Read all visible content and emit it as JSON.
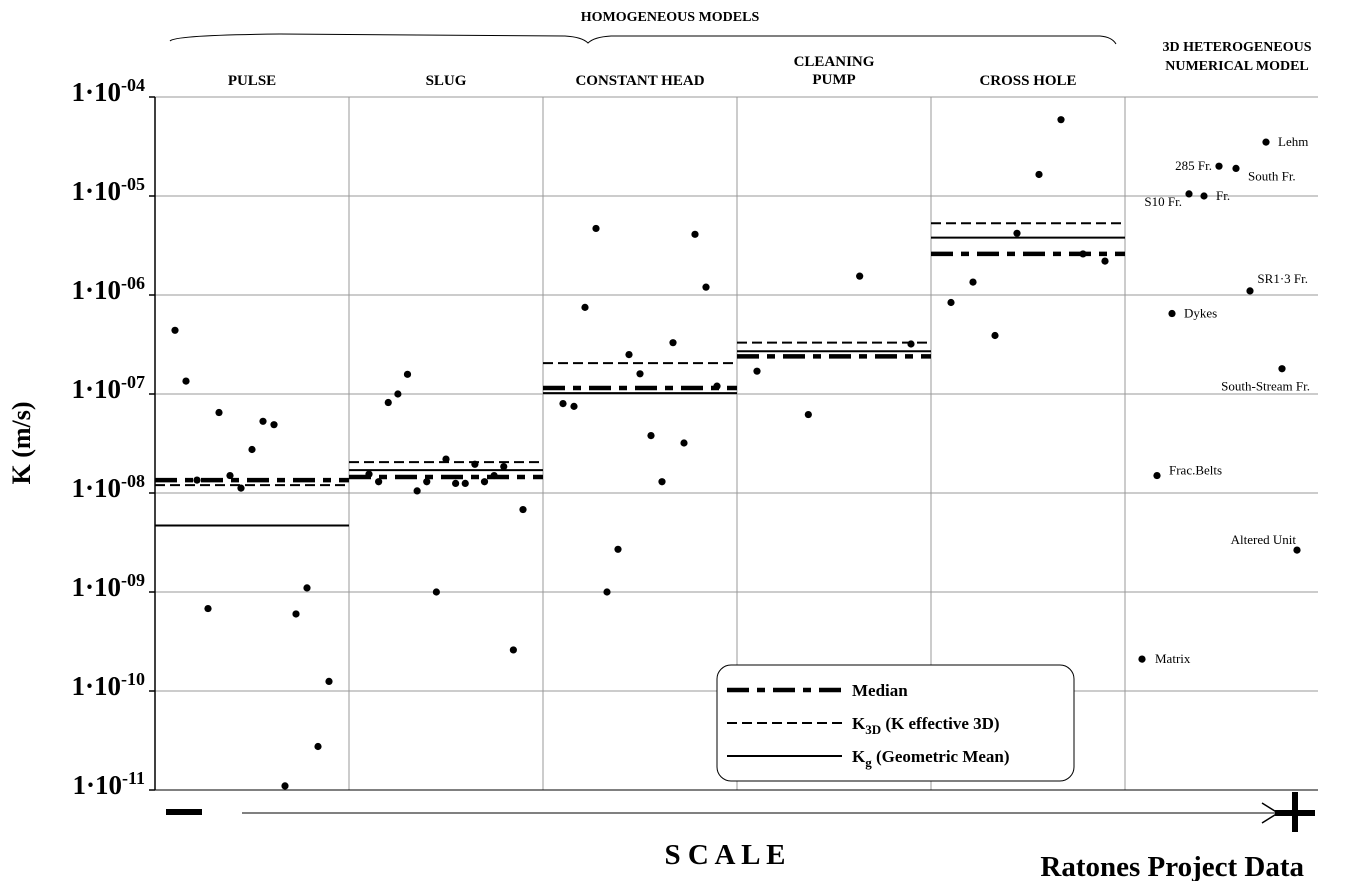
{
  "chart_data": {
    "type": "scatter",
    "y_scale": "log",
    "ylabel": "K (m/s)",
    "ylim": [
      1e-11,
      0.0001
    ],
    "y_ticks": [
      {
        "value": 0.0001,
        "label": "1·10-04"
      },
      {
        "value": 1e-05,
        "label": "1·10-05"
      },
      {
        "value": 1e-06,
        "label": "1·10-06"
      },
      {
        "value": 1e-07,
        "label": "1·10-07"
      },
      {
        "value": 1e-08,
        "label": "1·10-08"
      },
      {
        "value": 1e-09,
        "label": "1·10-09"
      },
      {
        "value": 1e-10,
        "label": "1·10-10"
      },
      {
        "value": 1e-11,
        "label": "1·10-11"
      }
    ],
    "grid": true,
    "group_headers": [
      {
        "label": "HOMOGENEOUS MODELS",
        "spans_panels": [
          0,
          4
        ]
      },
      {
        "label": "3D HETEROGENEOUS NUMERICAL MODEL",
        "spans_panels": [
          5,
          5
        ]
      }
    ],
    "panels": [
      {
        "name": "PULSE",
        "points": [
          4.4e-07,
          1.35e-07,
          1.35e-08,
          6.8e-10,
          6.5e-08,
          1.5e-08,
          1.12e-08,
          2.75e-08,
          5.3e-08,
          4.9e-08,
          1.1e-11,
          6e-10,
          1.1e-09,
          2.75e-11,
          1.25e-10
        ],
        "median": 1.35e-08,
        "k3d": 1.2e-08,
        "kg": 4.7e-09
      },
      {
        "name": "SLUG",
        "points": [
          1.55e-08,
          1.3e-08,
          8.2e-08,
          1e-07,
          1.58e-07,
          1.05e-08,
          1.3e-08,
          1e-09,
          2.2e-08,
          1.25e-08,
          1.25e-08,
          1.95e-08,
          1.3e-08,
          1.5e-08,
          1.85e-08,
          2.6e-10,
          6.8e-09
        ],
        "median": 1.45e-08,
        "k3d": 2.05e-08,
        "kg": 1.7e-08
      },
      {
        "name": "CONSTANT HEAD",
        "points": [
          8e-08,
          7.5e-08,
          7.5e-07,
          4.7e-06,
          1e-09,
          2.7e-09,
          2.5e-07,
          1.6e-07,
          3.8e-08,
          1.3e-08,
          3.3e-07,
          3.2e-08,
          4.1e-06,
          1.2e-06,
          1.2e-07
        ],
        "median": 1.15e-07,
        "k3d": 2.05e-07,
        "kg": 1.02e-07
      },
      {
        "name": "CLEANING PUMP",
        "points": [
          1.7e-07,
          6.2e-08,
          1.55e-06,
          3.2e-07
        ],
        "median": 2.4e-07,
        "k3d": 3.3e-07,
        "kg": 2.7e-07
      },
      {
        "name": "CROSS HOLE",
        "points": [
          8.4e-07,
          1.35e-06,
          3.9e-07,
          4.2e-06,
          1.65e-05,
          5.9e-05,
          2.6e-06,
          2.2e-06
        ],
        "median": 2.6e-06,
        "k3d": 5.3e-06,
        "kg": 3.8e-06
      }
    ],
    "heterogeneous_units": [
      {
        "label": "Lehm",
        "value": 3.5e-05
      },
      {
        "label": "285 Fr.",
        "value": 2e-05
      },
      {
        "label": "South Fr.",
        "value": 1.9e-05
      },
      {
        "label": "S10 Fr.",
        "value": 1.05e-05
      },
      {
        "label": "Fr.",
        "value": 1e-05
      },
      {
        "label": "SR1·3 Fr.",
        "value": 1.1e-06
      },
      {
        "label": "Dykes",
        "value": 6.5e-07
      },
      {
        "label": "South-Stream Fr.",
        "value": 1.8e-07
      },
      {
        "label": "Frac.Belts",
        "value": 1.5e-08
      },
      {
        "label": "Altered Unit",
        "value": 2.65e-09
      },
      {
        "label": "Matrix",
        "value": 2.1e-10
      }
    ],
    "legend": {
      "position": "bottom-right",
      "entries": [
        {
          "style": "dash-dot",
          "label": "Median"
        },
        {
          "style": "dashed",
          "label_main": "K",
          "label_sub": "3D",
          "label_rest": "(K effective 3D)"
        },
        {
          "style": "solid",
          "label_main": "K",
          "label_sub": "g",
          "label_rest": "(Geometric Mean)"
        }
      ]
    },
    "scale_axis": {
      "label": "S C A L E",
      "left_symbol": "−",
      "right_symbol": "+"
    },
    "footer": "Ratones Project Data"
  },
  "colors": {
    "ink": "#000000",
    "grid": "#999999",
    "background": "#ffffff"
  }
}
